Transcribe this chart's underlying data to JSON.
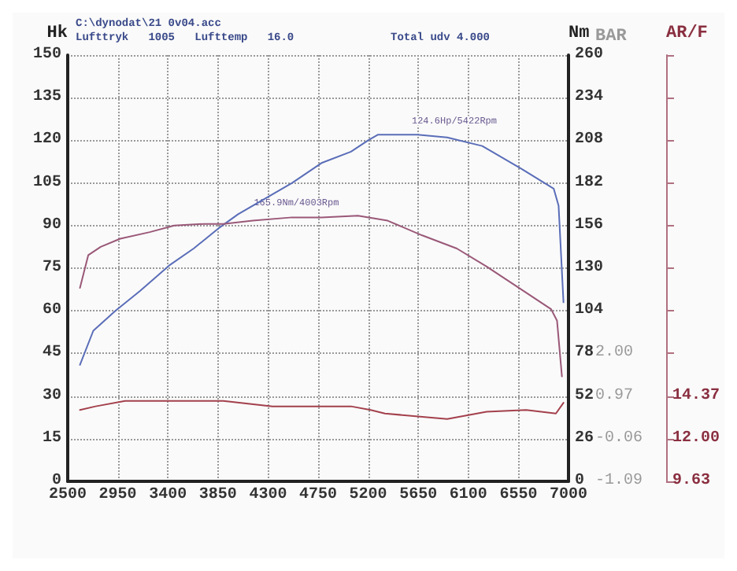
{
  "chart_data": {
    "type": "line",
    "ylabel": "Hk",
    "y2label": "Nm",
    "y3label": "AR/F",
    "annotations": [
      "C:\\dynodat\\21 0v04.acc",
      "Lufttryk   1005   Lufttemp   16.0",
      "Total udv 4.000",
      "BAR",
      "2.00",
      "0.97",
      "-0.06",
      "-1.09",
      {
        "text": "124.6Hp/5422Rpm",
        "x": 5422,
        "y": 123
      },
      {
        "text": "165.9Nm/4003Rpm",
        "x": 4003,
        "y": 94
      }
    ],
    "xlim": [
      2500,
      7000
    ],
    "xticks": [
      2500,
      2950,
      3400,
      3850,
      4300,
      4750,
      5200,
      5650,
      6100,
      6550,
      7000
    ],
    "ylim": [
      0,
      150
    ],
    "yticks": [
      0,
      15,
      30,
      45,
      60,
      75,
      90,
      105,
      120,
      135,
      150
    ],
    "y2lim": [
      0,
      260
    ],
    "y2ticks": [
      0,
      26,
      52,
      78,
      104,
      130,
      156,
      182,
      208,
      234,
      260
    ],
    "y3lim": [
      9.63,
      33.33
    ],
    "y3ticks": [
      9.63,
      {
        "value": 12,
        "label": "12.00"
      },
      14.37,
      {
        "value": 16.74,
        "label": null
      },
      {
        "value": 19.11,
        "label": null
      },
      {
        "value": 21.48,
        "label": null
      },
      {
        "value": 23.85,
        "label": null
      },
      {
        "value": 26.22,
        "label": null
      },
      {
        "value": 28.59,
        "label": null
      },
      {
        "value": 30.96,
        "label": null
      },
      {
        "value": 33.33,
        "label": null
      }
    ],
    "grid": true,
    "marker": "none",
    "line_style": "solid",
    "series": [
      {
        "color": "#5a6db8",
        "axis": "y",
        "x": [
          2610,
          2730,
          2928,
          3149,
          3413,
          3634,
          3854,
          4031,
          4251,
          4516,
          4780,
          5045,
          5200,
          5289,
          5443,
          5643,
          5910,
          6225,
          6577,
          6867,
          6911,
          6955
        ],
        "values": [
          41,
          53,
          60,
          67,
          76,
          82,
          89,
          94,
          99,
          105,
          112,
          116,
          120,
          122,
          122,
          122,
          121,
          118,
          110,
          103,
          97,
          63
        ]
      },
      {
        "color": "#9a5878",
        "axis": "y2",
        "x": [
          2610,
          2685,
          2796,
          2972,
          3237,
          3457,
          3722,
          3899,
          4163,
          4516,
          4780,
          5108,
          5375,
          5686,
          5997,
          6264,
          6577,
          6844,
          6897,
          6941
        ],
        "values": [
          118,
          138,
          143,
          148,
          152,
          156,
          157,
          157,
          159,
          161,
          161,
          162,
          159,
          150,
          142,
          131,
          117,
          105,
          98,
          64
        ]
      },
      {
        "color": "#a3404c",
        "axis": "y3",
        "x": [
          2610,
          2751,
          3016,
          3369,
          3899,
          4340,
          5045,
          5222,
          5350,
          5910,
          6264,
          6620,
          6887,
          6955
        ],
        "values": [
          13.6,
          13.8,
          14.1,
          14.1,
          14.1,
          13.8,
          13.8,
          13.6,
          13.4,
          13.1,
          13.5,
          13.6,
          13.4,
          14
        ]
      }
    ]
  }
}
